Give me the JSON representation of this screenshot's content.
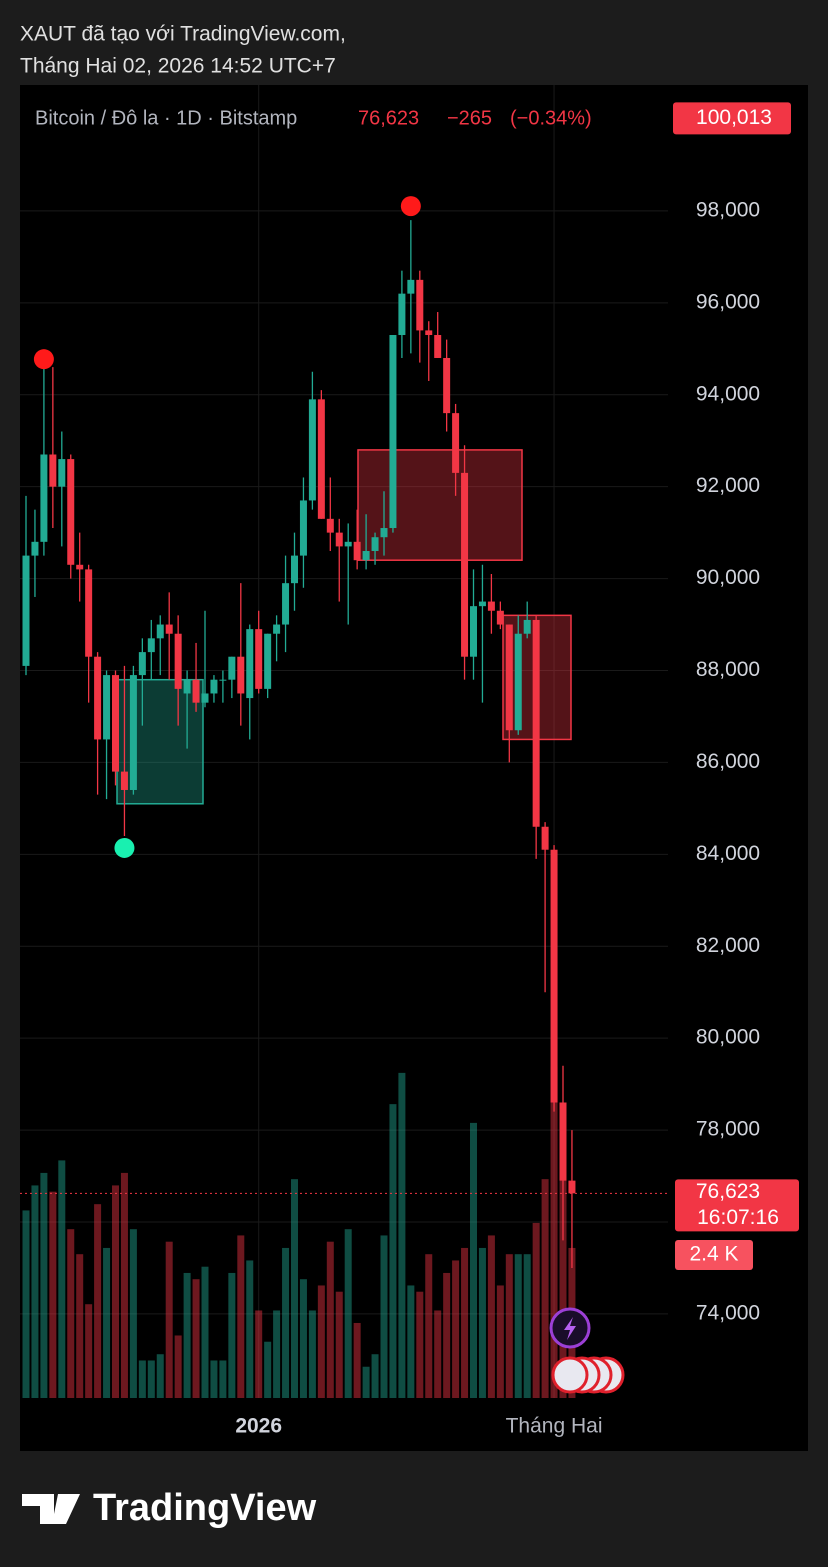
{
  "header": {
    "line1": "XAUT đã tạo với TradingView.com,",
    "line2": "Tháng Hai 02, 2026 14:52 UTC+7"
  },
  "chart_data": {
    "type": "candlestick",
    "symbol": "Bitcoin / Đô la · 1D · Bitstamp",
    "last_price": {
      "value": 76623,
      "label": "76,623"
    },
    "change": {
      "value": -265,
      "label": "−265"
    },
    "change_pct": {
      "value": -0.34,
      "label": "(−0.34%)"
    },
    "countdown": "16:07:16",
    "alert_price": {
      "value": 100013,
      "label": "100,013"
    },
    "up_color": "#22ab94",
    "down_color": "#f23645",
    "categories": [
      null,
      null,
      null,
      null,
      null,
      null,
      null,
      null,
      null,
      null,
      null,
      null,
      null,
      null,
      null,
      null,
      null,
      null,
      null,
      null,
      null,
      null,
      null,
      null,
      null,
      null,
      "2026",
      null,
      null,
      null,
      null,
      null,
      null,
      null,
      null,
      null,
      null,
      null,
      null,
      null,
      null,
      null,
      null,
      null,
      null,
      null,
      null,
      null,
      null,
      null,
      null,
      null,
      null,
      null,
      null,
      null,
      null,
      null,
      null,
      "Tháng Hai",
      null,
      null
    ],
    "open": [
      88100,
      90500,
      90800,
      92700,
      92000,
      92600,
      90300,
      90200,
      88300,
      86500,
      87900,
      85800,
      85400,
      87900,
      88400,
      88700,
      89000,
      88800,
      87500,
      87800,
      87300,
      87500,
      87800,
      87800,
      88300,
      87400,
      88900,
      87600,
      88800,
      89000,
      89900,
      90500,
      91700,
      93900,
      91300,
      91000,
      90700,
      90800,
      90400,
      90600,
      90900,
      91100,
      95300,
      96200,
      96500,
      95400,
      95300,
      94800,
      93600,
      92300,
      88300,
      89400,
      89500,
      89300,
      89000,
      86700,
      88800,
      89100,
      84600,
      84100,
      78600,
      76900
    ],
    "high": [
      91800,
      91500,
      94600,
      94600,
      93200,
      92700,
      91000,
      90300,
      88400,
      88000,
      88000,
      88100,
      88100,
      88700,
      89100,
      89200,
      89700,
      89200,
      88000,
      88600,
      89300,
      87900,
      88000,
      88300,
      89900,
      89000,
      89300,
      88800,
      89200,
      90500,
      91000,
      92200,
      94500,
      94100,
      92200,
      91300,
      91200,
      91500,
      91400,
      91000,
      91900,
      95300,
      96700,
      97800,
      96700,
      95600,
      95800,
      95200,
      93800,
      92900,
      90200,
      90300,
      90100,
      89500,
      89000,
      89200,
      89500,
      89200,
      84700,
      84200,
      79400,
      78000
    ],
    "low": [
      87900,
      89600,
      90500,
      91100,
      90700,
      90000,
      89500,
      87300,
      85300,
      85200,
      85500,
      84400,
      85300,
      86800,
      87800,
      87900,
      87800,
      86800,
      86300,
      87100,
      87200,
      87300,
      87300,
      87400,
      86800,
      86500,
      87500,
      87400,
      88200,
      88400,
      89300,
      89800,
      91500,
      91300,
      90600,
      89500,
      89000,
      90200,
      90200,
      90300,
      90500,
      91000,
      94800,
      94900,
      94700,
      94300,
      94800,
      93200,
      91800,
      87800,
      87800,
      87300,
      88800,
      88900,
      86000,
      86600,
      88700,
      83900,
      81000,
      78400,
      75600,
      75000
    ],
    "close": [
      90500,
      90800,
      92700,
      92000,
      92600,
      90300,
      90200,
      88300,
      86500,
      87900,
      85800,
      85400,
      87900,
      88400,
      88700,
      89000,
      88800,
      87600,
      87800,
      87300,
      87500,
      87800,
      87800,
      88300,
      87500,
      88900,
      87600,
      88800,
      89000,
      89900,
      90500,
      91700,
      93900,
      91300,
      91000,
      90700,
      90800,
      90400,
      90600,
      90900,
      91100,
      95300,
      96200,
      96500,
      95400,
      95300,
      94800,
      93600,
      92300,
      88300,
      89400,
      89500,
      89300,
      89000,
      86700,
      88800,
      89100,
      84600,
      84100,
      78600,
      76900,
      76623
    ],
    "volume": [
      3000,
      3400,
      3600,
      3300,
      3800,
      2700,
      2300,
      1500,
      3100,
      2400,
      3400,
      3600,
      2700,
      600,
      600,
      700,
      2500,
      1000,
      2000,
      1900,
      2100,
      600,
      600,
      2000,
      2600,
      2200,
      1400,
      900,
      1400,
      2400,
      3500,
      1900,
      1400,
      1800,
      2500,
      1700,
      2700,
      1200,
      500,
      700,
      2600,
      4700,
      5200,
      1800,
      1700,
      2300,
      1400,
      2000,
      2200,
      2400,
      4400,
      2400,
      2600,
      1800,
      2300,
      2300,
      2300,
      2800,
      3500,
      5300,
      4600,
      2400
    ],
    "volume_labels": {
      "61": "2.4 K"
    },
    "volume_lim": [
      0,
      21000
    ],
    "ylim": [
      72170,
      100740
    ],
    "yticks": [
      {
        "value": 74000,
        "label": "74,000"
      },
      {
        "value": 76000,
        "label": "76,000"
      },
      {
        "value": 78000,
        "label": "78,000"
      },
      {
        "value": 80000,
        "label": "80,000"
      },
      {
        "value": 82000,
        "label": "82,000"
      },
      {
        "value": 84000,
        "label": "84,000"
      },
      {
        "value": 86000,
        "label": "86,000"
      },
      {
        "value": 88000,
        "label": "88,000"
      },
      {
        "value": 90000,
        "label": "90,000"
      },
      {
        "value": 92000,
        "label": "92,000"
      },
      {
        "value": 94000,
        "label": "94,000"
      },
      {
        "value": 96000,
        "label": "96,000"
      },
      {
        "value": 98000,
        "label": "98,000"
      }
    ],
    "grid": true,
    "zones": [
      {
        "low": 85100,
        "high": 87800,
        "color": "#22ab94"
      },
      {
        "low": 90400,
        "high": 92800,
        "color": "#f23645"
      },
      {
        "low": 86500,
        "high": 89200,
        "color": "#f23645"
      }
    ]
  },
  "footer": {
    "brand": "TradingView"
  }
}
